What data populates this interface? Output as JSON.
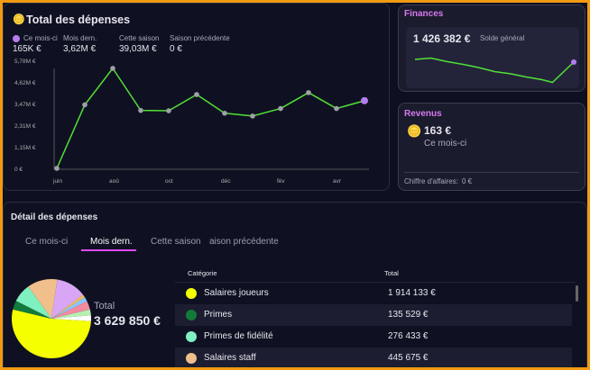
{
  "expenses": {
    "title": "Total des dépenses",
    "icon": "coins-minus-icon",
    "stats": [
      {
        "label": "Ce mois-ci",
        "value": "165K €"
      },
      {
        "label": "Mois dern.",
        "value": "3,62M €"
      },
      {
        "label": "Cette saison",
        "value": "39,03M €"
      },
      {
        "label": "Saison précédente",
        "value": "0 €"
      }
    ],
    "accent": "#b57cf0",
    "line_color": "#52e036"
  },
  "chart_data": {
    "type": "line",
    "yticks": [
      "0 €",
      "1,15M €",
      "2,31M €",
      "3,47M €",
      "4,62M €",
      "5,78M €"
    ],
    "ylim": [
      0,
      5.78
    ],
    "xticks": [
      "juin",
      "aoû",
      "oct",
      "déc",
      "fév",
      "avr"
    ],
    "x": [
      "juin",
      "juil",
      "aoû",
      "sep",
      "oct",
      "nov",
      "déc",
      "jan",
      "fév",
      "mar",
      "avr",
      "mai"
    ],
    "values": [
      0,
      3.4,
      5.35,
      3.1,
      3.08,
      3.95,
      2.95,
      2.8,
      3.2,
      4.05,
      3.2,
      3.62
    ]
  },
  "finances": {
    "title": "Finances",
    "balance": "1 426 382 €",
    "balance_label": "Solde général",
    "trend": [
      0.8,
      0.85,
      0.72,
      0.62,
      0.5,
      0.35,
      0.27,
      0.15,
      0.05,
      -0.05,
      0.7
    ]
  },
  "revenus": {
    "title": "Revenus",
    "value": "163 €",
    "sub": "Ce mois-ci",
    "turnover_label": "Chiffre d'affaires:",
    "turnover_value": "0 €"
  },
  "detail": {
    "title": "Détail des dépenses",
    "tabs": [
      "Ce mois-ci",
      "Mois dern.",
      "Cette saison",
      "aison précédente"
    ],
    "active_tab": 1,
    "total_label": "Total",
    "total_value": "3 629 850 €",
    "columns": [
      "Catégorie",
      "Total"
    ],
    "rows": [
      {
        "name": "Salaires joueurs",
        "total": "1 914 133 €",
        "color": "#f5ff00"
      },
      {
        "name": "Primes",
        "total": "135 529 €",
        "color": "#127a3a"
      },
      {
        "name": "Primes de fidélité",
        "total": "276 433 €",
        "color": "#7ff0c0"
      },
      {
        "name": "Salaires staff",
        "total": "445 675 €",
        "color": "#f0bf8c"
      }
    ]
  }
}
